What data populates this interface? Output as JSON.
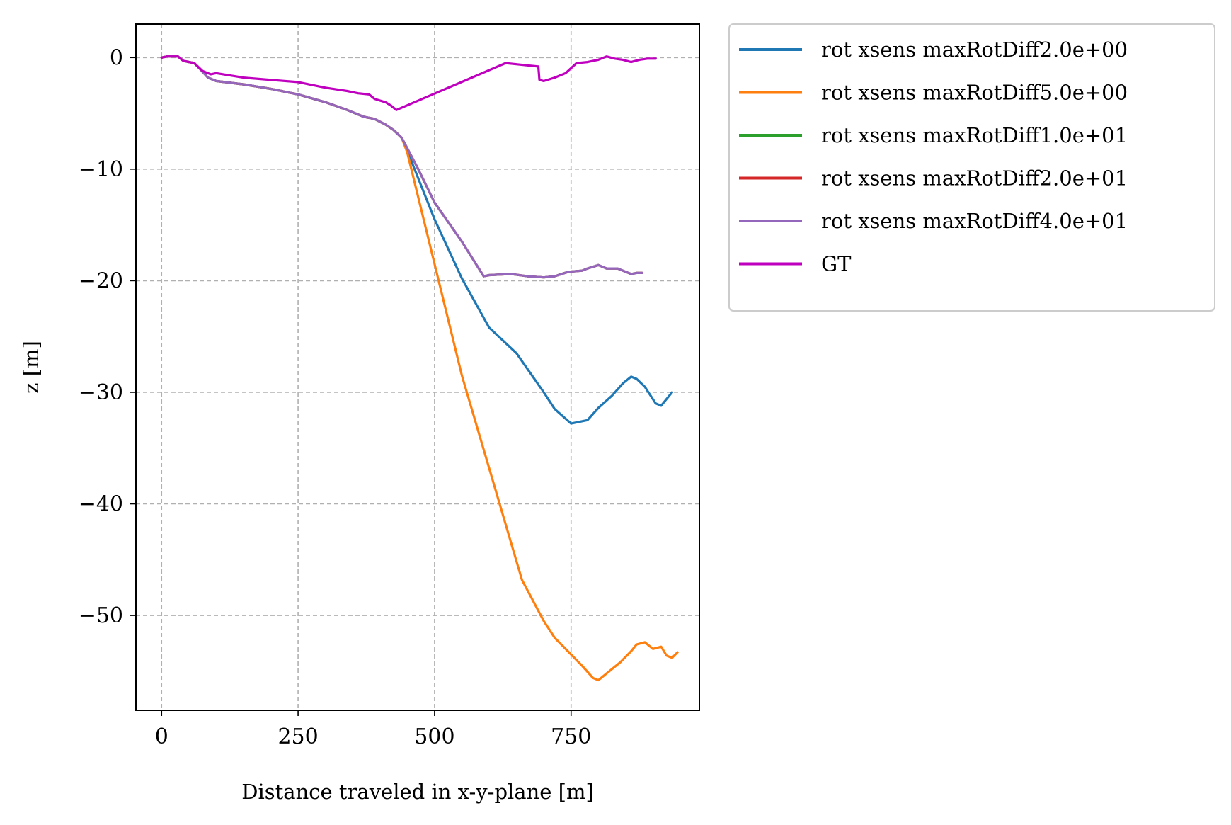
{
  "chart_data": {
    "type": "line",
    "xlabel": "Distance traveled in x-y-plane [m]",
    "ylabel": "z [m]",
    "xlim": [
      -47,
      985
    ],
    "ylim": [
      -58.5,
      3
    ],
    "xticks": [
      0,
      250,
      500,
      750
    ],
    "xtick_labels": [
      "0",
      "250",
      "500",
      "750"
    ],
    "yticks": [
      0,
      -10,
      -20,
      -30,
      -40,
      -50
    ],
    "ytick_labels": [
      "0",
      "−10",
      "−20",
      "−30",
      "−40",
      "−50"
    ],
    "grid": true,
    "legend_position": "outside-right-top",
    "series": [
      {
        "name": "rot xsens maxRotDiff2.0e+00",
        "color": "#1f77b4",
        "points": [
          [
            0,
            0
          ],
          [
            10,
            0.1
          ],
          [
            30,
            0.1
          ],
          [
            40,
            -0.3
          ],
          [
            60,
            -0.5
          ],
          [
            70,
            -1.0
          ],
          [
            85,
            -1.8
          ],
          [
            100,
            -2.1
          ],
          [
            150,
            -2.4
          ],
          [
            200,
            -2.8
          ],
          [
            250,
            -3.3
          ],
          [
            300,
            -4.0
          ],
          [
            340,
            -4.7
          ],
          [
            370,
            -5.3
          ],
          [
            390,
            -5.5
          ],
          [
            410,
            -6.0
          ],
          [
            425,
            -6.5
          ],
          [
            440,
            -7.2
          ],
          [
            460,
            -9.6
          ],
          [
            500,
            -14.5
          ],
          [
            550,
            -19.8
          ],
          [
            600,
            -24.2
          ],
          [
            650,
            -26.5
          ],
          [
            700,
            -30.0
          ],
          [
            720,
            -31.5
          ],
          [
            750,
            -32.8
          ],
          [
            780,
            -32.5
          ],
          [
            800,
            -31.4
          ],
          [
            825,
            -30.3
          ],
          [
            845,
            -29.2
          ],
          [
            860,
            -28.6
          ],
          [
            870,
            -28.8
          ],
          [
            885,
            -29.5
          ],
          [
            905,
            -31.0
          ],
          [
            915,
            -31.2
          ],
          [
            925,
            -30.6
          ],
          [
            935,
            -30.0
          ]
        ]
      },
      {
        "name": "rot xsens maxRotDiff5.0e+00",
        "color": "#ff7f0e",
        "points": [
          [
            0,
            0
          ],
          [
            10,
            0.1
          ],
          [
            30,
            0.1
          ],
          [
            40,
            -0.3
          ],
          [
            60,
            -0.5
          ],
          [
            70,
            -1.0
          ],
          [
            85,
            -1.8
          ],
          [
            100,
            -2.1
          ],
          [
            150,
            -2.4
          ],
          [
            200,
            -2.8
          ],
          [
            250,
            -3.3
          ],
          [
            300,
            -4.0
          ],
          [
            340,
            -4.7
          ],
          [
            370,
            -5.3
          ],
          [
            390,
            -5.5
          ],
          [
            410,
            -6.0
          ],
          [
            425,
            -6.5
          ],
          [
            440,
            -7.2
          ],
          [
            450,
            -8.5
          ],
          [
            500,
            -18.5
          ],
          [
            550,
            -28.5
          ],
          [
            600,
            -36.8
          ],
          [
            660,
            -46.8
          ],
          [
            700,
            -50.5
          ],
          [
            720,
            -52.0
          ],
          [
            740,
            -53.0
          ],
          [
            770,
            -54.5
          ],
          [
            790,
            -55.6
          ],
          [
            800,
            -55.8
          ],
          [
            815,
            -55.2
          ],
          [
            840,
            -54.2
          ],
          [
            860,
            -53.2
          ],
          [
            870,
            -52.6
          ],
          [
            885,
            -52.4
          ],
          [
            900,
            -53.0
          ],
          [
            915,
            -52.8
          ],
          [
            925,
            -53.6
          ],
          [
            935,
            -53.8
          ],
          [
            945,
            -53.3
          ]
        ]
      },
      {
        "name": "rot xsens maxRotDiff1.0e+01",
        "color": "#2ca02c",
        "points": [
          [
            0,
            0
          ],
          [
            10,
            0.1
          ],
          [
            30,
            0.1
          ],
          [
            40,
            -0.3
          ],
          [
            60,
            -0.5
          ],
          [
            70,
            -1.0
          ],
          [
            85,
            -1.8
          ],
          [
            100,
            -2.1
          ],
          [
            150,
            -2.4
          ],
          [
            200,
            -2.8
          ],
          [
            250,
            -3.3
          ],
          [
            300,
            -4.0
          ],
          [
            340,
            -4.7
          ],
          [
            370,
            -5.3
          ],
          [
            390,
            -5.5
          ],
          [
            410,
            -6.0
          ],
          [
            425,
            -6.5
          ],
          [
            440,
            -7.2
          ],
          [
            470,
            -10.0
          ],
          [
            500,
            -13.0
          ],
          [
            550,
            -16.5
          ],
          [
            590,
            -19.6
          ],
          [
            600,
            -19.5
          ],
          [
            640,
            -19.4
          ],
          [
            670,
            -19.6
          ],
          [
            700,
            -19.7
          ],
          [
            720,
            -19.6
          ],
          [
            745,
            -19.2
          ],
          [
            770,
            -19.1
          ],
          [
            780,
            -18.9
          ],
          [
            800,
            -18.6
          ],
          [
            815,
            -18.9
          ],
          [
            835,
            -18.9
          ],
          [
            850,
            -19.2
          ],
          [
            860,
            -19.4
          ],
          [
            870,
            -19.3
          ],
          [
            880,
            -19.3
          ]
        ]
      },
      {
        "name": "rot xsens maxRotDiff2.0e+01",
        "color": "#d62728",
        "points": [
          [
            0,
            0
          ],
          [
            10,
            0.1
          ],
          [
            30,
            0.1
          ],
          [
            40,
            -0.3
          ],
          [
            60,
            -0.5
          ],
          [
            70,
            -1.0
          ],
          [
            85,
            -1.8
          ],
          [
            100,
            -2.1
          ],
          [
            150,
            -2.4
          ],
          [
            200,
            -2.8
          ],
          [
            250,
            -3.3
          ],
          [
            300,
            -4.0
          ],
          [
            340,
            -4.7
          ],
          [
            370,
            -5.3
          ],
          [
            390,
            -5.5
          ],
          [
            410,
            -6.0
          ],
          [
            425,
            -6.5
          ],
          [
            440,
            -7.2
          ],
          [
            470,
            -10.0
          ],
          [
            500,
            -13.0
          ],
          [
            550,
            -16.5
          ],
          [
            590,
            -19.6
          ],
          [
            600,
            -19.5
          ],
          [
            640,
            -19.4
          ],
          [
            670,
            -19.6
          ],
          [
            700,
            -19.7
          ],
          [
            720,
            -19.6
          ],
          [
            745,
            -19.2
          ],
          [
            770,
            -19.1
          ],
          [
            780,
            -18.9
          ],
          [
            800,
            -18.6
          ],
          [
            815,
            -18.9
          ],
          [
            835,
            -18.9
          ],
          [
            850,
            -19.2
          ],
          [
            860,
            -19.4
          ],
          [
            870,
            -19.3
          ],
          [
            880,
            -19.3
          ]
        ]
      },
      {
        "name": "rot xsens maxRotDiff4.0e+01",
        "color": "#9467bd",
        "points": [
          [
            0,
            0
          ],
          [
            10,
            0.1
          ],
          [
            30,
            0.1
          ],
          [
            40,
            -0.3
          ],
          [
            60,
            -0.5
          ],
          [
            70,
            -1.0
          ],
          [
            85,
            -1.8
          ],
          [
            100,
            -2.1
          ],
          [
            150,
            -2.4
          ],
          [
            200,
            -2.8
          ],
          [
            250,
            -3.3
          ],
          [
            300,
            -4.0
          ],
          [
            340,
            -4.7
          ],
          [
            370,
            -5.3
          ],
          [
            390,
            -5.5
          ],
          [
            410,
            -6.0
          ],
          [
            425,
            -6.5
          ],
          [
            440,
            -7.2
          ],
          [
            470,
            -10.0
          ],
          [
            500,
            -13.0
          ],
          [
            550,
            -16.5
          ],
          [
            590,
            -19.6
          ],
          [
            600,
            -19.5
          ],
          [
            640,
            -19.4
          ],
          [
            670,
            -19.6
          ],
          [
            700,
            -19.7
          ],
          [
            720,
            -19.6
          ],
          [
            745,
            -19.2
          ],
          [
            770,
            -19.1
          ],
          [
            780,
            -18.9
          ],
          [
            800,
            -18.6
          ],
          [
            815,
            -18.9
          ],
          [
            835,
            -18.9
          ],
          [
            850,
            -19.2
          ],
          [
            860,
            -19.4
          ],
          [
            870,
            -19.3
          ],
          [
            880,
            -19.3
          ]
        ]
      },
      {
        "name": "GT",
        "color": "#bf00bf",
        "points": [
          [
            0,
            0
          ],
          [
            10,
            0.1
          ],
          [
            30,
            0.1
          ],
          [
            40,
            -0.3
          ],
          [
            60,
            -0.5
          ],
          [
            75,
            -1.2
          ],
          [
            90,
            -1.5
          ],
          [
            100,
            -1.4
          ],
          [
            150,
            -1.8
          ],
          [
            200,
            -2.0
          ],
          [
            250,
            -2.2
          ],
          [
            300,
            -2.7
          ],
          [
            340,
            -3.0
          ],
          [
            360,
            -3.2
          ],
          [
            380,
            -3.3
          ],
          [
            390,
            -3.7
          ],
          [
            410,
            -4.0
          ],
          [
            420,
            -4.3
          ],
          [
            430,
            -4.7
          ],
          [
            630,
            -0.5
          ],
          [
            650,
            -0.6
          ],
          [
            670,
            -0.7
          ],
          [
            690,
            -0.8
          ],
          [
            692,
            -2.0
          ],
          [
            700,
            -2.1
          ],
          [
            720,
            -1.8
          ],
          [
            740,
            -1.4
          ],
          [
            760,
            -0.5
          ],
          [
            780,
            -0.4
          ],
          [
            800,
            -0.2
          ],
          [
            815,
            0.1
          ],
          [
            830,
            -0.1
          ],
          [
            845,
            -0.2
          ],
          [
            860,
            -0.4
          ],
          [
            875,
            -0.2
          ],
          [
            890,
            -0.1
          ],
          [
            905,
            -0.1
          ]
        ]
      }
    ]
  }
}
